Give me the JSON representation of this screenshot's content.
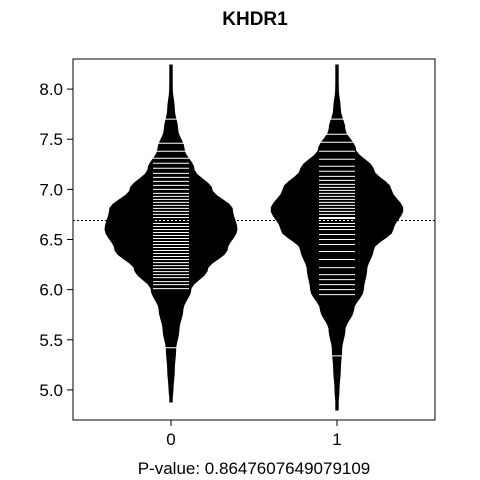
{
  "chart_data": {
    "type": "beanplot",
    "title": "KHDR1",
    "xlabel": "P-value: 0.8647607649079109",
    "ylabel": "",
    "categories": [
      "0",
      "1"
    ],
    "ylim": [
      4.7,
      8.3
    ],
    "yticks": [
      5.0,
      5.5,
      6.0,
      6.5,
      7.0,
      7.5,
      8.0
    ],
    "ytick_labels": [
      "5.0",
      "5.5",
      "6.0",
      "6.5",
      "7.0",
      "7.5",
      "8.0"
    ],
    "overall_mean": 6.69,
    "beans": [
      {
        "name": "0",
        "range": [
          4.88,
          8.24
        ],
        "group_mean": 6.63,
        "mean_line_width": 0.55,
        "quantile_lines": [
          5.42,
          7.7
        ],
        "density": [
          [
            4.88,
            0.01
          ],
          [
            5.0,
            0.03
          ],
          [
            5.2,
            0.05
          ],
          [
            5.4,
            0.07
          ],
          [
            5.6,
            0.12
          ],
          [
            5.8,
            0.18
          ],
          [
            6.0,
            0.3
          ],
          [
            6.2,
            0.55
          ],
          [
            6.4,
            0.85
          ],
          [
            6.6,
            1.0
          ],
          [
            6.8,
            0.93
          ],
          [
            7.0,
            0.62
          ],
          [
            7.2,
            0.35
          ],
          [
            7.4,
            0.2
          ],
          [
            7.6,
            0.1
          ],
          [
            7.8,
            0.05
          ],
          [
            8.0,
            0.02
          ],
          [
            8.24,
            0.005
          ]
        ],
        "observations": [
          6.01,
          6.05,
          6.08,
          6.12,
          6.15,
          6.18,
          6.21,
          6.24,
          6.27,
          6.3,
          6.33,
          6.36,
          6.39,
          6.42,
          6.45,
          6.48,
          6.51,
          6.54,
          6.57,
          6.6,
          6.63,
          6.66,
          6.69,
          6.72,
          6.75,
          6.78,
          6.81,
          6.84,
          6.87,
          6.9,
          6.93,
          6.96,
          7.0,
          7.04,
          7.08,
          7.12,
          7.16,
          7.21,
          7.26,
          7.31,
          7.38,
          7.46
        ]
      },
      {
        "name": "1",
        "range": [
          4.8,
          8.24
        ],
        "group_mean": 6.71,
        "mean_line_width": 0.55,
        "quantile_lines": [
          5.34,
          7.7
        ],
        "density": [
          [
            4.8,
            0.01
          ],
          [
            5.0,
            0.03
          ],
          [
            5.2,
            0.05
          ],
          [
            5.4,
            0.07
          ],
          [
            5.6,
            0.12
          ],
          [
            5.8,
            0.25
          ],
          [
            6.0,
            0.4
          ],
          [
            6.2,
            0.45
          ],
          [
            6.4,
            0.55
          ],
          [
            6.6,
            0.85
          ],
          [
            6.8,
            1.0
          ],
          [
            7.0,
            0.82
          ],
          [
            7.2,
            0.55
          ],
          [
            7.4,
            0.28
          ],
          [
            7.6,
            0.12
          ],
          [
            7.8,
            0.05
          ],
          [
            8.0,
            0.02
          ],
          [
            8.24,
            0.005
          ]
        ],
        "observations": [
          5.95,
          6.0,
          6.05,
          6.1,
          6.15,
          6.22,
          6.3,
          6.38,
          6.45,
          6.5,
          6.55,
          6.6,
          6.63,
          6.66,
          6.69,
          6.72,
          6.75,
          6.78,
          6.81,
          6.84,
          6.87,
          6.9,
          6.93,
          6.96,
          6.99,
          7.02,
          7.05,
          7.09,
          7.13,
          7.18,
          7.23,
          7.3,
          7.38,
          7.47,
          7.55
        ]
      }
    ],
    "grid": false,
    "legend": "none"
  }
}
